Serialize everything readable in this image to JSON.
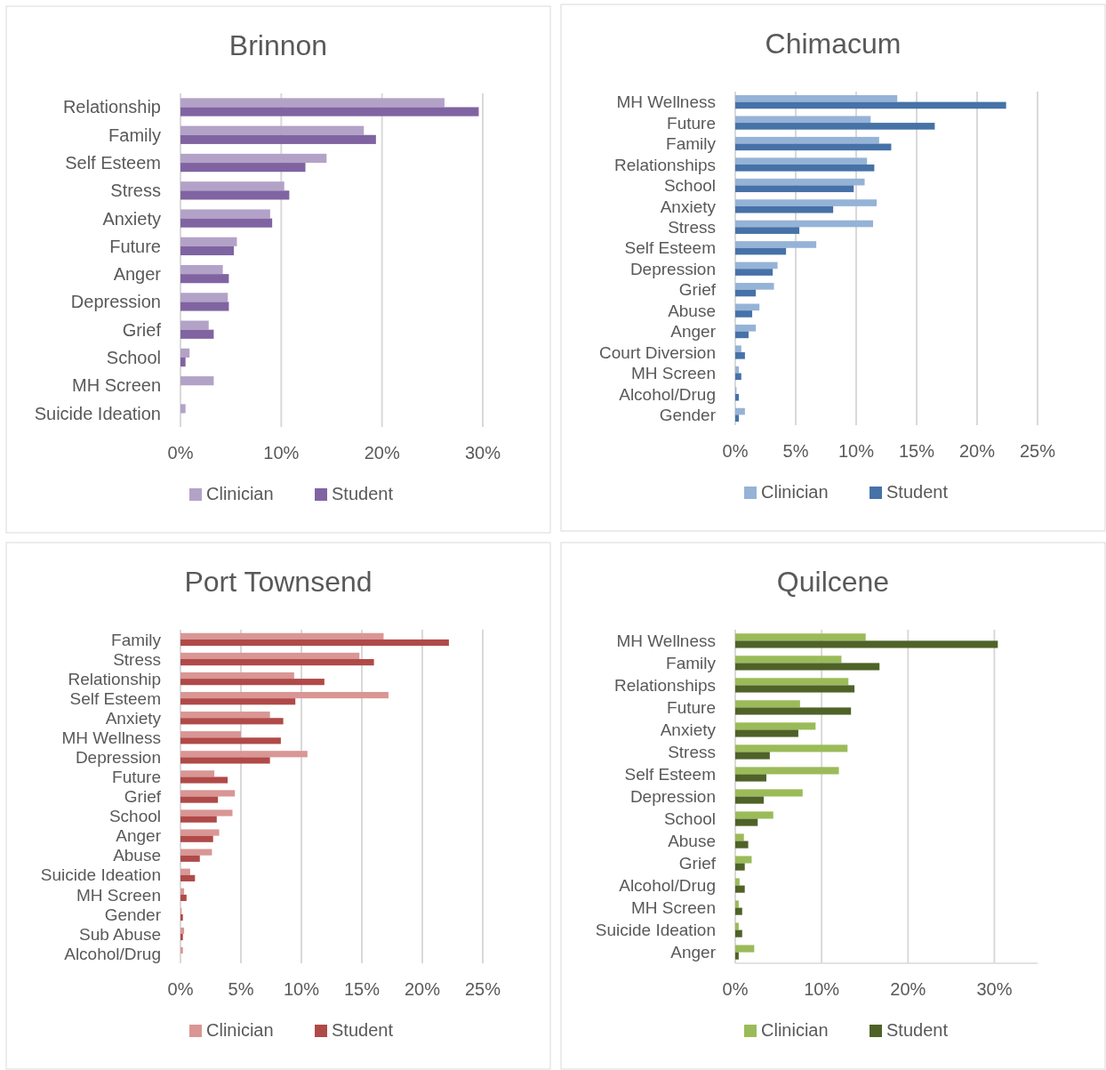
{
  "chart_data": [
    {
      "type": "bar",
      "orientation": "horizontal",
      "title": "Brinnon",
      "categories": [
        "Relationship",
        "Family",
        "Self Esteem",
        "Stress",
        "Anxiety",
        "Future",
        "Anger",
        "Depression",
        "Grief",
        "School",
        "MH Screen",
        "Suicide Ideation"
      ],
      "series": [
        {
          "name": "Clinician",
          "color": "#b3a2c7",
          "values": [
            26.2,
            18.2,
            14.5,
            10.3,
            8.9,
            5.6,
            4.2,
            4.7,
            2.8,
            0.9,
            3.3,
            0.5
          ]
        },
        {
          "name": "Student",
          "color": "#8064a2",
          "values": [
            29.6,
            19.4,
            12.4,
            10.8,
            9.1,
            5.3,
            4.8,
            4.8,
            3.3,
            0.5,
            null,
            null
          ]
        }
      ],
      "xlim": [
        0,
        30
      ],
      "xticks": [
        {
          "value": 0,
          "label": "0%"
        },
        {
          "value": 10,
          "label": "10%"
        },
        {
          "value": 20,
          "label": "20%"
        },
        {
          "value": 30,
          "label": "30%"
        }
      ],
      "grid": "x",
      "legend": "bottom"
    },
    {
      "type": "bar",
      "orientation": "horizontal",
      "title": "Chimacum",
      "categories": [
        "MH Wellness",
        "Future",
        "Family",
        "Relationships",
        "School",
        "Anxiety",
        "Stress",
        "Self Esteem",
        "Depression",
        "Grief",
        "Abuse",
        "Anger",
        "Court Diversion",
        "MH Screen",
        "Alcohol/Drug",
        "Gender"
      ],
      "series": [
        {
          "name": "Clinician",
          "color": "#95b3d7",
          "values": [
            13.4,
            11.2,
            11.9,
            10.9,
            10.7,
            11.7,
            11.4,
            6.7,
            3.5,
            3.2,
            2.0,
            1.7,
            0.5,
            0.3,
            0.1,
            0.8
          ]
        },
        {
          "name": "Student",
          "color": "#4672a8",
          "values": [
            22.4,
            16.5,
            12.9,
            11.5,
            9.8,
            8.1,
            5.3,
            4.2,
            3.1,
            1.7,
            1.4,
            1.1,
            0.8,
            0.5,
            0.3,
            0.3
          ]
        }
      ],
      "xlim": [
        0,
        25
      ],
      "xticks": [
        {
          "value": 0,
          "label": "0%"
        },
        {
          "value": 5,
          "label": "5%"
        },
        {
          "value": 10,
          "label": "10%"
        },
        {
          "value": 15,
          "label": "15%"
        },
        {
          "value": 20,
          "label": "20%"
        },
        {
          "value": 25,
          "label": "25%"
        }
      ],
      "grid": "x",
      "legend": "bottom"
    },
    {
      "type": "bar",
      "orientation": "horizontal",
      "title": "Port Townsend",
      "categories": [
        "Family",
        "Stress",
        "Relationship",
        "Self Esteem",
        "Anxiety",
        "MH Wellness",
        "Depression",
        "Future",
        "Grief",
        "School",
        "Anger",
        "Abuse",
        "Suicide Ideation",
        "MH Screen",
        "Gender",
        "Sub Abuse",
        "Alcohol/Drug"
      ],
      "series": [
        {
          "name": "Clinician",
          "color": "#d99694",
          "values": [
            16.8,
            14.8,
            9.4,
            17.2,
            7.4,
            5.0,
            10.5,
            2.8,
            4.5,
            4.3,
            3.2,
            2.6,
            0.8,
            0.3,
            0.1,
            0.3,
            0.2
          ]
        },
        {
          "name": "Student",
          "color": "#b04a48",
          "values": [
            22.2,
            16.0,
            11.9,
            9.5,
            8.5,
            8.3,
            7.4,
            3.9,
            3.1,
            3.0,
            2.7,
            1.6,
            1.2,
            0.5,
            0.2,
            0.2,
            null
          ]
        }
      ],
      "xlim": [
        0,
        25
      ],
      "xticks": [
        {
          "value": 0,
          "label": "0%"
        },
        {
          "value": 5,
          "label": "5%"
        },
        {
          "value": 10,
          "label": "10%"
        },
        {
          "value": 15,
          "label": "15%"
        },
        {
          "value": 20,
          "label": "20%"
        },
        {
          "value": 25,
          "label": "25%"
        }
      ],
      "grid": "x",
      "legend": "bottom"
    },
    {
      "type": "bar",
      "orientation": "horizontal",
      "title": "Quilcene",
      "categories": [
        "MH Wellness",
        "Family",
        "Relationships",
        "Future",
        "Anxiety",
        "Stress",
        "Self Esteem",
        "Depression",
        "School",
        "Abuse",
        "Grief",
        "Alcohol/Drug",
        "MH Screen",
        "Suicide Ideation",
        "Anger"
      ],
      "series": [
        {
          "name": "Clinician",
          "color": "#9bbb59",
          "values": [
            15.1,
            12.3,
            13.1,
            7.5,
            9.3,
            13.0,
            12.0,
            7.8,
            4.4,
            1.0,
            1.9,
            0.5,
            0.4,
            0.4,
            2.2
          ]
        },
        {
          "name": "Student",
          "color": "#4f6228",
          "values": [
            30.4,
            16.7,
            13.8,
            13.4,
            7.3,
            4.0,
            3.6,
            3.3,
            2.6,
            1.5,
            1.1,
            1.1,
            0.8,
            0.8,
            0.4
          ]
        }
      ],
      "xlim": [
        0,
        35
      ],
      "xticks": [
        {
          "value": 0,
          "label": "0%"
        },
        {
          "value": 10,
          "label": "10%"
        },
        {
          "value": 20,
          "label": "20%"
        },
        {
          "value": 30,
          "label": "30%"
        }
      ],
      "grid": "x",
      "legend": "bottom"
    }
  ]
}
